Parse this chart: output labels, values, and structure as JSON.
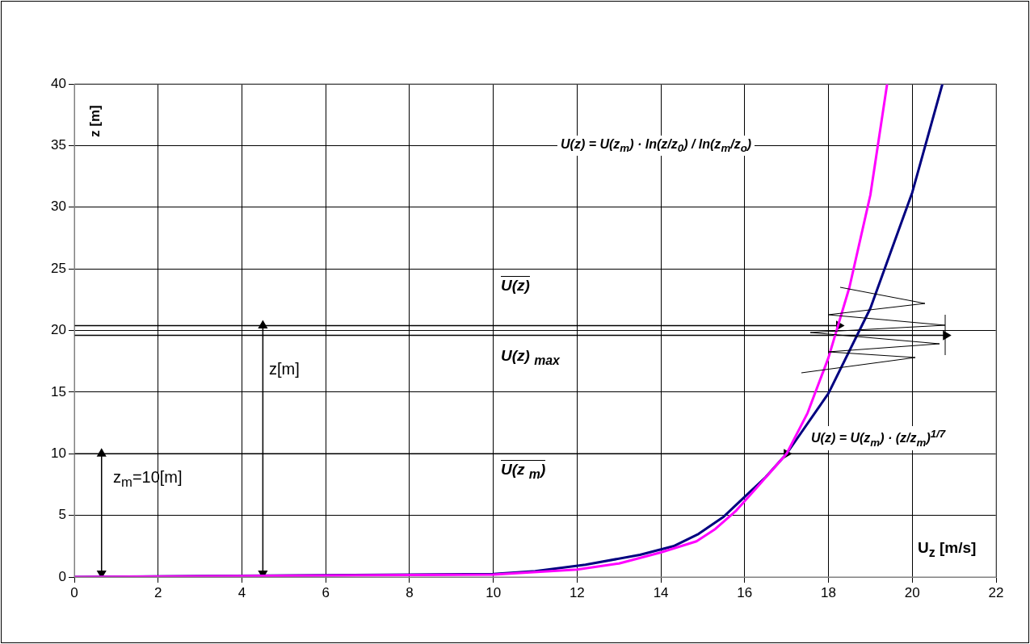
{
  "chart_data": {
    "type": "line",
    "xlabel": "U$_{z}$ [m/s]",
    "ylabel": "z [m]",
    "series": [
      {
        "color": "#ff00ff",
        "x": [
          0,
          10,
          12,
          13,
          14,
          14.85,
          15.3,
          15.8,
          16.3,
          17,
          17.5,
          18,
          18.5,
          19,
          19.4
        ],
        "values": [
          0,
          0.2,
          0.6,
          1.1,
          2.0,
          2.9,
          3.9,
          5.4,
          7.3,
          10,
          13.3,
          17.8,
          23.5,
          31,
          40
        ]
      },
      {
        "color": "#000080",
        "x": [
          0,
          10,
          11,
          12.2,
          13.5,
          14.3,
          14.9,
          15.5,
          16,
          16.5,
          17,
          18,
          19,
          20,
          20.72
        ],
        "values": [
          0,
          0.24,
          0.48,
          1.0,
          1.8,
          2.5,
          3.5,
          4.9,
          6.5,
          8.1,
          10,
          14.9,
          21.8,
          31.2,
          40
        ]
      },
      {
        "color": "#000000",
        "marker": "triangle",
        "x": [
          0,
          18.25
        ],
        "values": [
          20.4,
          20.4
        ]
      },
      {
        "color": "#000000",
        "marker": "triangle",
        "x": [
          0,
          20.8
        ],
        "values": [
          19.6,
          19.6
        ]
      },
      {
        "color": "#000000",
        "marker": "triangle",
        "x": [
          0,
          17
        ],
        "values": [
          10,
          10
        ]
      },
      {
        "color": "#000000",
        "x": [
          17,
          18
        ],
        "values": [
          10,
          10
        ]
      },
      {
        "color": "#000000",
        "marker": "triangle",
        "x": [
          0.65,
          0.65
        ],
        "values": [
          0.3,
          10
        ]
      },
      {
        "color": "#000000",
        "marker": "triangle",
        "x": [
          4.5,
          4.5
        ],
        "values": [
          0.3,
          20.4
        ]
      }
    ],
    "xlim": [
      0,
      22
    ],
    "xticks": [
      0,
      2,
      4,
      6,
      8,
      10,
      12,
      14,
      16,
      18,
      20,
      22
    ],
    "ylim": [
      0,
      40
    ],
    "yticks": [
      0,
      5,
      10,
      15,
      20,
      25,
      30,
      35,
      40
    ],
    "grid": true,
    "marker": "none",
    "line_style": "solid",
    "annotations": [
      "U(z) = U(z$_{m}$) · ln(z/z$_{0}$) / ln(z$_{m}$/z$_{o}$)",
      "U(z) = U(z$_{m}$) · (z/z$_{m}$)$^{1/7}$",
      "U(z)",
      "U(z) $_{max}$",
      "z[m]",
      "z$_{m}$=10[m]",
      "U(z $_{m}$)"
    ]
  }
}
